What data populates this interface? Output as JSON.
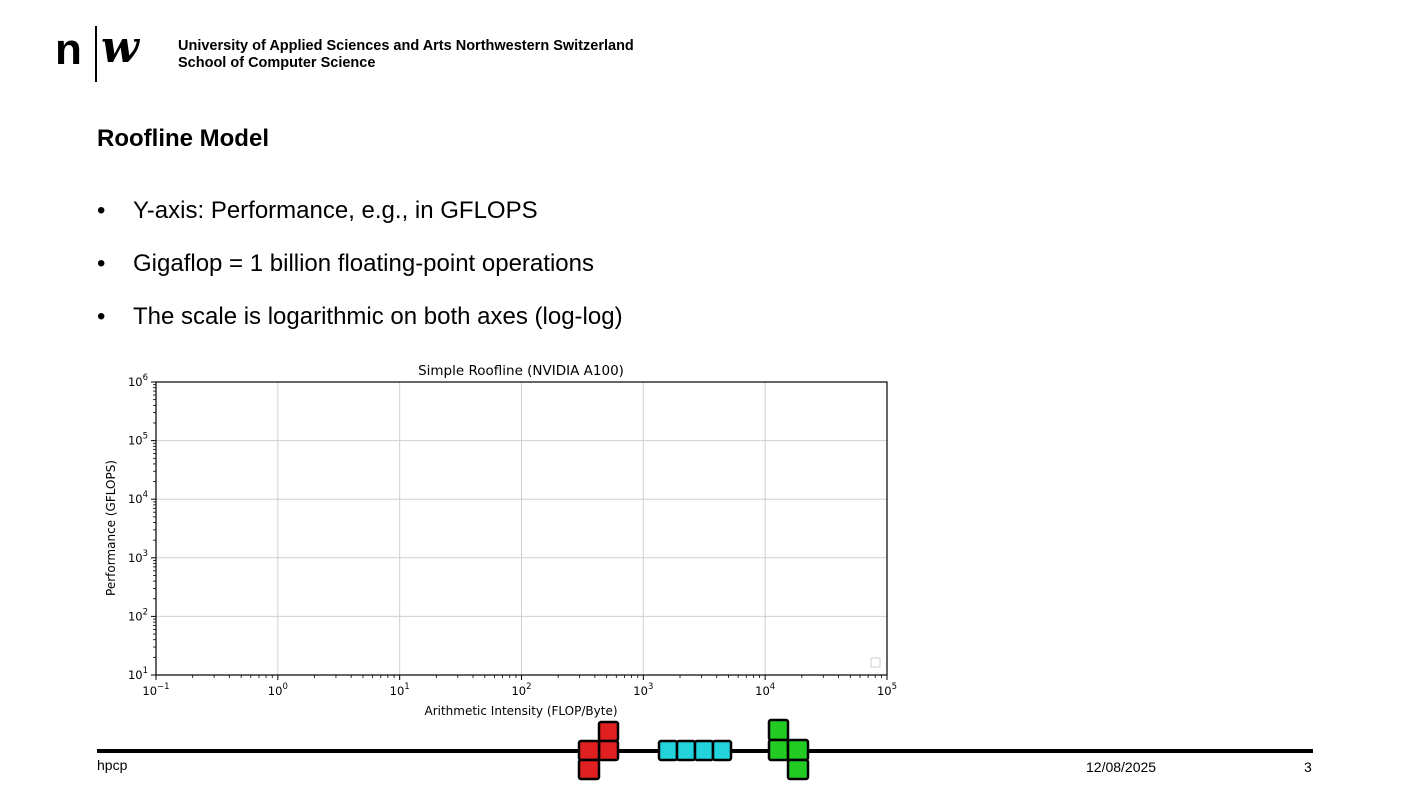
{
  "header": {
    "logo_n": "n",
    "logo_w": "w",
    "institution_line1": "University of Applied Sciences and Arts Northwestern Switzerland",
    "institution_line2": "School of Computer Science"
  },
  "slide": {
    "title": "Roofline Model",
    "bullet_symbol": "•",
    "bullets": [
      "Y-axis: Performance, e.g., in GFLOPS",
      "Gigaflop = 1 billion floating-point operations",
      "The scale is logarithmic on both axes (log-log)"
    ]
  },
  "chart_data": {
    "type": "line",
    "title": "Simple Roofline (NVIDIA A100)",
    "xlabel": "Arithmetic Intensity (FLOP/Byte)",
    "ylabel": "Performance (GFLOPS)",
    "xscale": "log",
    "yscale": "log",
    "xlim": [
      0.1,
      100000
    ],
    "ylim": [
      10,
      1000000
    ],
    "x_ticks": [
      {
        "base": "10",
        "exp": "−1"
      },
      {
        "base": "10",
        "exp": "0"
      },
      {
        "base": "10",
        "exp": "1"
      },
      {
        "base": "10",
        "exp": "2"
      },
      {
        "base": "10",
        "exp": "3"
      },
      {
        "base": "10",
        "exp": "4"
      },
      {
        "base": "10",
        "exp": "5"
      }
    ],
    "y_ticks": [
      {
        "base": "10",
        "exp": "1"
      },
      {
        "base": "10",
        "exp": "2"
      },
      {
        "base": "10",
        "exp": "3"
      },
      {
        "base": "10",
        "exp": "4"
      },
      {
        "base": "10",
        "exp": "5"
      },
      {
        "base": "10",
        "exp": "6"
      }
    ],
    "grid": true,
    "series": [],
    "legend": "bottom-right"
  },
  "footer": {
    "left": "hpcp",
    "date": "12/08/2025",
    "page": "3"
  },
  "colors": {
    "block_red": "#e02020",
    "block_cyan": "#22d3dc",
    "block_green": "#22cc22"
  }
}
